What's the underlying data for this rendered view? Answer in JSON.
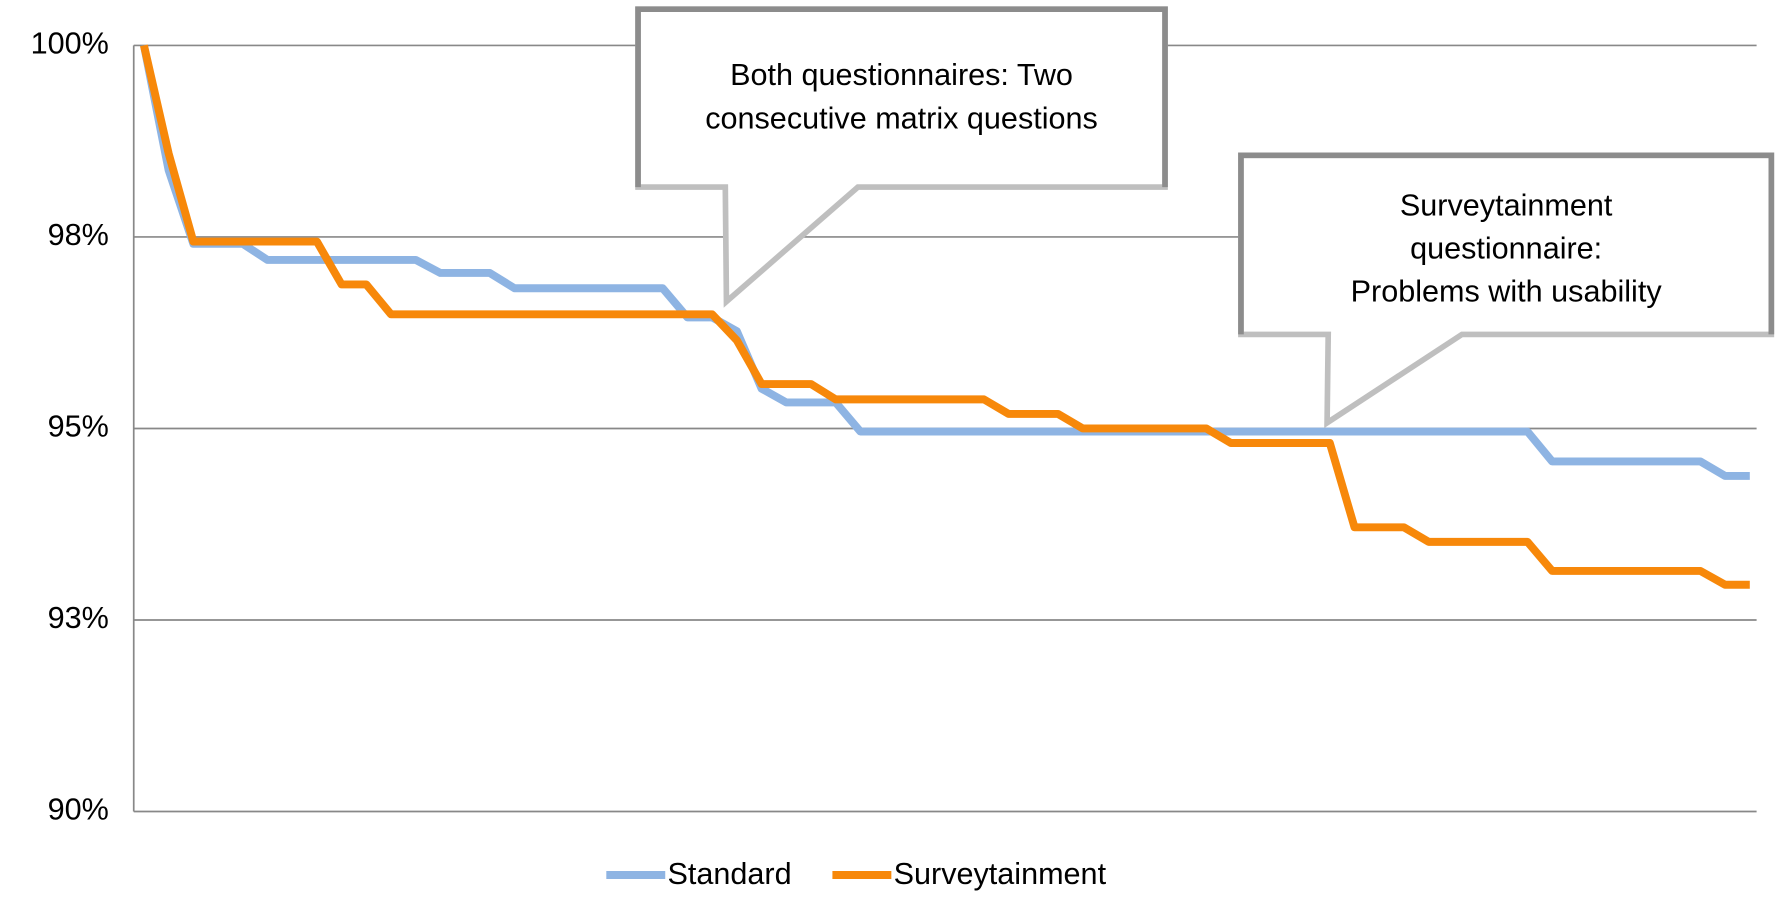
{
  "chart_data": {
    "type": "line",
    "categories": [
      null,
      null,
      null,
      null,
      null,
      null,
      null,
      null,
      null,
      null,
      null,
      null,
      null,
      null,
      null,
      null,
      null,
      null,
      null,
      null,
      null,
      null,
      null,
      null,
      null,
      null,
      null,
      null,
      null,
      null,
      null,
      null,
      null,
      null,
      null,
      null,
      null,
      null,
      null,
      null,
      null,
      null,
      null,
      null,
      null,
      null,
      null,
      null,
      null,
      null,
      null,
      null,
      null,
      null,
      null,
      null,
      null,
      null,
      null,
      null,
      null,
      null,
      null,
      null,
      null,
      null
    ],
    "series": [
      {
        "name": "Standard",
        "color": "#8eb4e3",
        "values": [
          100,
          98.37,
          97.41,
          97.41,
          97.41,
          97.2,
          97.2,
          97.2,
          97.2,
          97.2,
          97.2,
          97.2,
          97.03,
          97.03,
          97.03,
          96.83,
          96.83,
          96.83,
          96.83,
          96.83,
          96.83,
          96.83,
          96.45,
          96.45,
          96.27,
          95.52,
          95.34,
          95.34,
          95.34,
          94.96,
          94.96,
          94.96,
          94.96,
          94.96,
          94.96,
          94.96,
          94.96,
          94.96,
          94.96,
          94.96,
          94.96,
          94.96,
          94.96,
          94.96,
          94.96,
          94.96,
          94.96,
          94.96,
          94.96,
          94.96,
          94.96,
          94.96,
          94.96,
          94.96,
          94.96,
          94.96,
          94.96,
          94.57,
          94.57,
          94.57,
          94.57,
          94.57,
          94.57,
          94.57,
          94.38,
          94.38
        ]
      },
      {
        "name": "Surveytainment",
        "color": "#f7880a",
        "values": [
          100,
          98.59,
          97.44,
          97.44,
          97.44,
          97.44,
          97.44,
          97.44,
          96.88,
          96.88,
          96.49,
          96.49,
          96.49,
          96.49,
          96.49,
          96.49,
          96.49,
          96.49,
          96.49,
          96.49,
          96.49,
          96.49,
          96.49,
          96.49,
          96.15,
          95.58,
          95.58,
          95.58,
          95.38,
          95.38,
          95.38,
          95.38,
          95.38,
          95.38,
          95.38,
          95.19,
          95.19,
          95.19,
          95.0,
          95.0,
          95.0,
          95.0,
          95.0,
          95.0,
          94.81,
          94.81,
          94.81,
          94.81,
          94.81,
          93.71,
          93.71,
          93.71,
          93.52,
          93.52,
          93.52,
          93.52,
          93.52,
          93.14,
          93.14,
          93.14,
          93.14,
          93.14,
          93.14,
          93.14,
          92.96,
          92.96
        ]
      }
    ],
    "ylim": [
      90,
      100
    ],
    "yticks": [
      {
        "value": 90,
        "label": "90%"
      },
      {
        "value": 92.5,
        "label": "93%"
      },
      {
        "value": 95,
        "label": "95%"
      },
      {
        "value": 97.5,
        "label": "98%"
      },
      {
        "value": 100,
        "label": "100%"
      }
    ],
    "grid": true,
    "legend": "bottom",
    "annotations": [
      {
        "lines": [
          "Both questionnaires: Two",
          "consecutive matrix questions"
        ]
      },
      {
        "lines": [
          "Surveytainment",
          "questionnaire:",
          "Problems with usability"
        ]
      }
    ]
  }
}
